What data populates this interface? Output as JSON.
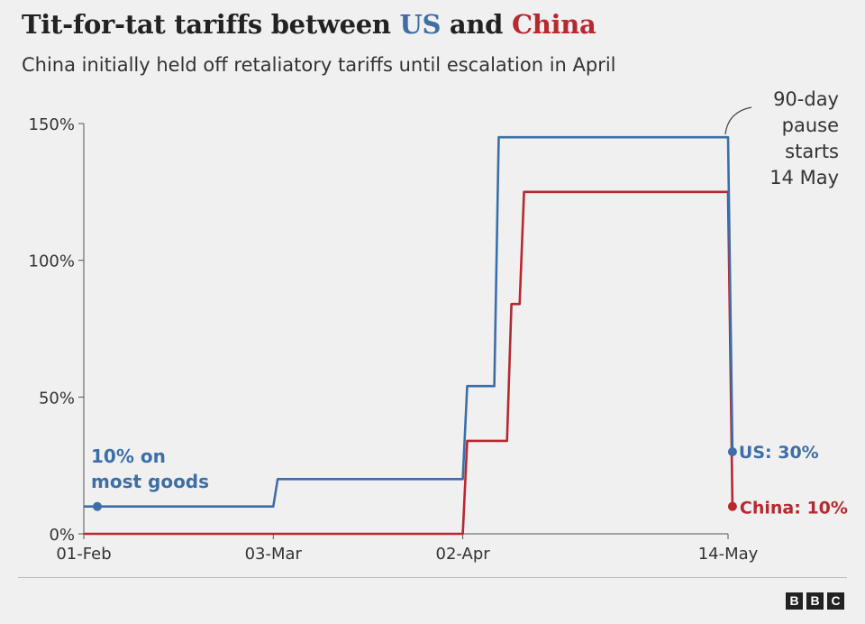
{
  "title": {
    "prefix": "Tit-for-tat tariffs between ",
    "us": "US",
    "mid": " and ",
    "china": "China"
  },
  "subtitle": "China initially held off retaliatory tariffs until escalation in April",
  "colors": {
    "us": "#3d6ea8",
    "china": "#b8282e",
    "axis": "#555555",
    "text": "#222222",
    "background": "#f0f0f0"
  },
  "chart_data": {
    "type": "line",
    "line_shape": "step",
    "x_axis": {
      "type": "date",
      "start": "2025-02-01",
      "end": "2025-05-14",
      "ticks": [
        {
          "date": "2025-02-01",
          "label": "01-Feb"
        },
        {
          "date": "2025-03-03",
          "label": "03-Mar"
        },
        {
          "date": "2025-04-02",
          "label": "02-Apr"
        },
        {
          "date": "2025-05-14",
          "label": "14-May"
        }
      ]
    },
    "y_axis": {
      "ylim": [
        0,
        150
      ],
      "ticks": [
        {
          "value": 0,
          "label": "0%"
        },
        {
          "value": 50,
          "label": "50%"
        },
        {
          "value": 100,
          "label": "100%"
        },
        {
          "value": 150,
          "label": "150%"
        }
      ]
    },
    "grid": false,
    "series": [
      {
        "name": "US",
        "color": "#3d6ea8",
        "points": [
          {
            "x": "2025-02-01",
            "y": 10
          },
          {
            "x": "2025-03-03",
            "y": 20
          },
          {
            "x": "2025-04-02",
            "y": 54
          },
          {
            "x": "2025-04-07",
            "y": 145
          },
          {
            "x": "2025-05-14",
            "y": 30
          }
        ]
      },
      {
        "name": "China",
        "color": "#b8282e",
        "points": [
          {
            "x": "2025-02-01",
            "y": 0
          },
          {
            "x": "2025-04-02",
            "y": 34
          },
          {
            "x": "2025-04-09",
            "y": 84
          },
          {
            "x": "2025-04-11",
            "y": 125
          },
          {
            "x": "2025-05-14",
            "y": 10
          }
        ]
      }
    ],
    "annotations": {
      "us_start": [
        "10% on",
        "most goods"
      ],
      "pause": [
        "90-day",
        "pause",
        "starts",
        "14 May"
      ],
      "us_end": "US: 30%",
      "china_end": "China: 10%"
    }
  },
  "logo": [
    "B",
    "B",
    "C"
  ]
}
